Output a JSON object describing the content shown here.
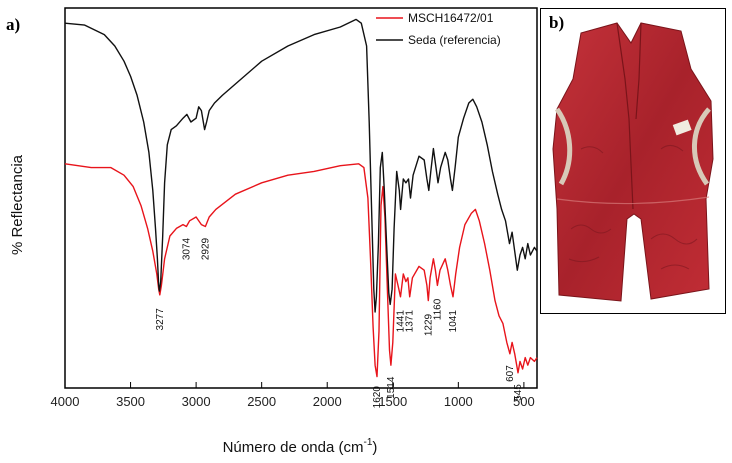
{
  "panel_a_label": "a)",
  "panel_b_label": "b)",
  "colors": {
    "red_series": "#e8141b",
    "black_series": "#111111",
    "vest_red": "#b8272e"
  },
  "chart_data": {
    "type": "line",
    "xlabel": "Número de onda (cm",
    "xlabel_sup": "-1",
    "xlabel_end": ")",
    "ylabel": "% Reflectancia",
    "xlim": [
      4000,
      400
    ],
    "ylim": [
      0,
      100
    ],
    "x_ticks": [
      "4000",
      "3500",
      "3000",
      "2500",
      "2000",
      "1500",
      "1000",
      "500"
    ],
    "x_tick_values": [
      4000,
      3500,
      3000,
      2500,
      2000,
      1500,
      1000,
      500
    ],
    "legend": {
      "position": "top-right",
      "entries": [
        "MSCH16472/01",
        "Seda (referencia)"
      ]
    },
    "series": [
      {
        "name": "MSCH16472/01",
        "color": "#e8141b",
        "points": [
          [
            4000,
            59
          ],
          [
            3800,
            58
          ],
          [
            3650,
            58
          ],
          [
            3550,
            56
          ],
          [
            3480,
            53
          ],
          [
            3420,
            48
          ],
          [
            3370,
            42
          ],
          [
            3330,
            36
          ],
          [
            3300,
            30
          ],
          [
            3285,
            26
          ],
          [
            3277,
            24.5
          ],
          [
            3265,
            27
          ],
          [
            3240,
            34
          ],
          [
            3200,
            40
          ],
          [
            3150,
            42
          ],
          [
            3100,
            43
          ],
          [
            3074,
            42.5
          ],
          [
            3050,
            44
          ],
          [
            3000,
            45
          ],
          [
            2960,
            43
          ],
          [
            2929,
            42.5
          ],
          [
            2900,
            45
          ],
          [
            2850,
            47
          ],
          [
            2700,
            51
          ],
          [
            2500,
            54
          ],
          [
            2300,
            56
          ],
          [
            2100,
            57
          ],
          [
            1900,
            58.5
          ],
          [
            1760,
            59
          ],
          [
            1720,
            58
          ],
          [
            1690,
            50
          ],
          [
            1670,
            34
          ],
          [
            1650,
            16
          ],
          [
            1635,
            6
          ],
          [
            1620,
            3
          ],
          [
            1605,
            15
          ],
          [
            1590,
            48
          ],
          [
            1575,
            53
          ],
          [
            1560,
            45
          ],
          [
            1540,
            25
          ],
          [
            1525,
            10
          ],
          [
            1514,
            6
          ],
          [
            1500,
            12
          ],
          [
            1480,
            30
          ],
          [
            1460,
            27
          ],
          [
            1441,
            24
          ],
          [
            1420,
            30
          ],
          [
            1400,
            28
          ],
          [
            1385,
            29
          ],
          [
            1371,
            24
          ],
          [
            1350,
            29
          ],
          [
            1300,
            32
          ],
          [
            1260,
            31
          ],
          [
            1240,
            27
          ],
          [
            1229,
            23
          ],
          [
            1215,
            29
          ],
          [
            1190,
            34
          ],
          [
            1175,
            31
          ],
          [
            1160,
            27
          ],
          [
            1140,
            31
          ],
          [
            1100,
            34
          ],
          [
            1080,
            31
          ],
          [
            1060,
            27
          ],
          [
            1041,
            24
          ],
          [
            1020,
            30
          ],
          [
            990,
            37
          ],
          [
            950,
            43
          ],
          [
            900,
            46
          ],
          [
            870,
            47
          ],
          [
            840,
            44
          ],
          [
            800,
            38
          ],
          [
            760,
            31
          ],
          [
            720,
            23
          ],
          [
            690,
            19
          ],
          [
            660,
            17
          ],
          [
            630,
            12
          ],
          [
            607,
            9
          ],
          [
            590,
            12
          ],
          [
            570,
            9
          ],
          [
            545,
            4
          ],
          [
            530,
            7
          ],
          [
            510,
            5
          ],
          [
            490,
            8
          ],
          [
            470,
            6
          ],
          [
            450,
            8
          ],
          [
            420,
            7
          ],
          [
            400,
            8
          ]
        ]
      },
      {
        "name": "Seda (referencia)",
        "color": "#111111",
        "points": [
          [
            4000,
            96
          ],
          [
            3850,
            95.5
          ],
          [
            3700,
            93
          ],
          [
            3620,
            90
          ],
          [
            3550,
            86
          ],
          [
            3500,
            82
          ],
          [
            3450,
            77
          ],
          [
            3400,
            70
          ],
          [
            3360,
            62
          ],
          [
            3330,
            52
          ],
          [
            3310,
            42
          ],
          [
            3295,
            34
          ],
          [
            3285,
            27
          ],
          [
            3280,
            25.5
          ],
          [
            3270,
            28
          ],
          [
            3255,
            40
          ],
          [
            3240,
            54
          ],
          [
            3220,
            64
          ],
          [
            3190,
            68
          ],
          [
            3150,
            69
          ],
          [
            3100,
            71
          ],
          [
            3070,
            72
          ],
          [
            3040,
            70
          ],
          [
            3000,
            71
          ],
          [
            2980,
            74
          ],
          [
            2960,
            73
          ],
          [
            2935,
            68
          ],
          [
            2920,
            70
          ],
          [
            2900,
            73
          ],
          [
            2860,
            75
          ],
          [
            2800,
            77
          ],
          [
            2700,
            80
          ],
          [
            2500,
            86
          ],
          [
            2300,
            90
          ],
          [
            2100,
            93
          ],
          [
            1900,
            95
          ],
          [
            1780,
            97
          ],
          [
            1740,
            96
          ],
          [
            1700,
            90
          ],
          [
            1680,
            70
          ],
          [
            1660,
            45
          ],
          [
            1645,
            26
          ],
          [
            1635,
            20
          ],
          [
            1625,
            24
          ],
          [
            1610,
            38
          ],
          [
            1595,
            58
          ],
          [
            1580,
            62
          ],
          [
            1565,
            52
          ],
          [
            1545,
            36
          ],
          [
            1530,
            25
          ],
          [
            1520,
            22
          ],
          [
            1505,
            26
          ],
          [
            1490,
            42
          ],
          [
            1470,
            57
          ],
          [
            1450,
            52
          ],
          [
            1440,
            47
          ],
          [
            1420,
            55
          ],
          [
            1400,
            54
          ],
          [
            1380,
            55
          ],
          [
            1365,
            50
          ],
          [
            1345,
            56
          ],
          [
            1300,
            61
          ],
          [
            1260,
            60
          ],
          [
            1240,
            55
          ],
          [
            1225,
            52
          ],
          [
            1210,
            57
          ],
          [
            1190,
            63
          ],
          [
            1170,
            58
          ],
          [
            1155,
            54
          ],
          [
            1135,
            58
          ],
          [
            1100,
            62
          ],
          [
            1080,
            60
          ],
          [
            1060,
            55
          ],
          [
            1045,
            52
          ],
          [
            1025,
            58
          ],
          [
            1000,
            66
          ],
          [
            960,
            71
          ],
          [
            920,
            75
          ],
          [
            890,
            76
          ],
          [
            860,
            74
          ],
          [
            820,
            70
          ],
          [
            780,
            64
          ],
          [
            740,
            57
          ],
          [
            700,
            51
          ],
          [
            670,
            47
          ],
          [
            640,
            44
          ],
          [
            610,
            38
          ],
          [
            590,
            41
          ],
          [
            570,
            36
          ],
          [
            550,
            31
          ],
          [
            530,
            35
          ],
          [
            510,
            37
          ],
          [
            490,
            34
          ],
          [
            470,
            38
          ],
          [
            450,
            35
          ],
          [
            420,
            37
          ],
          [
            400,
            36
          ]
        ]
      }
    ],
    "annotations": [
      {
        "text": "3277",
        "x": 3277,
        "y": 21,
        "color": "#111111"
      },
      {
        "text": "3074",
        "x": 3074,
        "y": 39.5,
        "color": "#111111"
      },
      {
        "text": "2929",
        "x": 2929,
        "y": 39.5,
        "color": "#111111"
      },
      {
        "text": "1620",
        "x": 1620,
        "y": 0.5,
        "color": "#111111"
      },
      {
        "text": "1514",
        "x": 1514,
        "y": 3,
        "color": "#111111"
      },
      {
        "text": "1441",
        "x": 1441,
        "y": 20.5,
        "color": "#111111"
      },
      {
        "text": "1371",
        "x": 1371,
        "y": 20.5,
        "color": "#111111"
      },
      {
        "text": "1229",
        "x": 1229,
        "y": 19.5,
        "color": "#111111"
      },
      {
        "text": "1160",
        "x": 1160,
        "y": 23.5,
        "color": "#111111"
      },
      {
        "text": "1041",
        "x": 1041,
        "y": 20.5,
        "color": "#111111"
      },
      {
        "text": "607",
        "x": 607,
        "y": 6,
        "color": "#111111"
      },
      {
        "text": "545",
        "x": 545,
        "y": 1,
        "color": "#111111"
      }
    ]
  }
}
